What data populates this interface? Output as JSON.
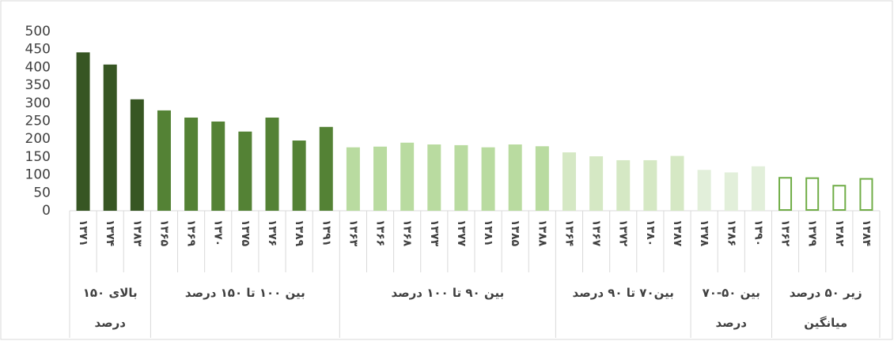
{
  "chart_data": {
    "type": "bar",
    "ylim": [
      0,
      500
    ],
    "yticks": [
      0,
      50,
      100,
      150,
      200,
      250,
      300,
      350,
      400,
      450,
      500
    ],
    "groups": [
      {
        "label": "بالای ۱۵۰ درصد",
        "color": "#375623",
        "categories": [
          "۱۳۷۱",
          "۱۳۷۴",
          "۱۳۸۳"
        ],
        "values": [
          442,
          408,
          311
        ]
      },
      {
        "label": "بین ۱۰۰ تا ۱۵۰ درصد",
        "color": "#548235",
        "categories": [
          "۱۳۶۵",
          "۱۳۶۹",
          "۱۳۷۰",
          "۱۳۷۵",
          "۱۳۷۶",
          "۱۳۸۹",
          "۱۳۹۱"
        ],
        "values": [
          280,
          260,
          249,
          221,
          260,
          196,
          234
        ]
      },
      {
        "label": "بین ۹۰ تا ۱۰۰ درصد",
        "color": "#b9dba0",
        "categories": [
          "۱۳۶۳",
          "۱۳۶۶",
          "۱۳۶۸",
          "۱۳۷۳",
          "۱۳۷۷",
          "۱۳۸۱",
          "۱۳۸۵",
          "۱۳۸۸"
        ],
        "values": [
          177,
          179,
          190,
          185,
          183,
          177,
          185,
          180
        ]
      },
      {
        "label": "بین۷۰ تا ۹۰ درصد",
        "color": "#d5e8c4",
        "categories": [
          "۱۳۶۴",
          "۱۳۶۷",
          "۱۳۷۲",
          "۱۳۸۰",
          "۱۳۸۷"
        ],
        "values": [
          163,
          152,
          141,
          141,
          153
        ]
      },
      {
        "label": "بین ۵۰-۷۰ درصد",
        "color": "#e2efda",
        "categories": [
          "۱۳۷۸",
          "۱۳۸۶",
          "۱۳۹۰"
        ],
        "values": [
          114,
          107,
          124
        ]
      },
      {
        "label": "زیر ۵۰ درصد میانگین",
        "color": "#70ad47",
        "hollow": true,
        "categories": [
          "۱۳۶۲",
          "۱۳۷۹",
          "۱۳۸۲",
          "۱۳۸۴"
        ],
        "values": [
          92,
          91,
          70,
          89
        ]
      }
    ]
  }
}
